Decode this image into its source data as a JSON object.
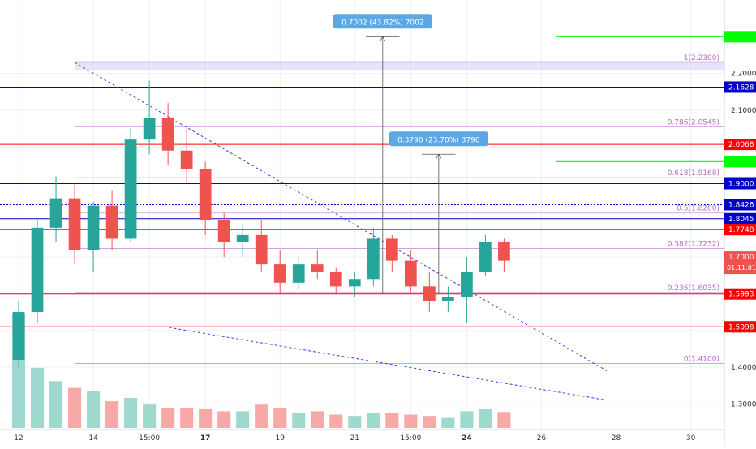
{
  "chart_data": {
    "type": "candlestick",
    "title": "",
    "grid": true,
    "price_axis": {
      "ticks": [
        2.2,
        2.1,
        2.0,
        1.9,
        1.8,
        1.7,
        1.6,
        1.5,
        1.4,
        1.3
      ],
      "tick_labels": [
        "2.2000",
        "2.1000",
        "2.0000",
        "1.9000",
        "1.8000",
        "1.7000",
        "1.6000",
        "1.5000",
        "1.4000",
        "1.3000"
      ],
      "range": [
        1.23,
        2.4
      ]
    },
    "time_axis": {
      "labels": [
        "12",
        "14",
        "15:00",
        "17",
        "19",
        "21",
        "15:00",
        "24",
        "26",
        "28",
        "30"
      ],
      "positions": [
        0,
        4,
        7,
        10,
        14,
        18,
        21,
        24,
        28,
        32,
        36
      ],
      "bold": [
        "17",
        "24"
      ],
      "range_bars": [
        -1,
        37.8
      ]
    },
    "colors": {
      "up": "#26a69a",
      "down": "#ef5350",
      "volume_up": "#9ed8cf",
      "volume_down": "#f7a9a7",
      "fib": "#ba68c8",
      "blue_level": "#0000c8",
      "red_level": "#ff0000",
      "green_level": "#00ff00",
      "trendline": "#3d3ddb",
      "measure": "#5aa9e6"
    },
    "candles": [
      [
        1.42,
        1.58,
        1.4,
        1.55
      ],
      [
        1.55,
        1.8,
        1.52,
        1.78
      ],
      [
        1.78,
        1.92,
        1.74,
        1.86
      ],
      [
        1.86,
        1.9,
        1.68,
        1.72
      ],
      [
        1.72,
        1.85,
        1.66,
        1.84
      ],
      [
        1.84,
        1.88,
        1.72,
        1.75
      ],
      [
        1.75,
        2.05,
        1.74,
        2.02
      ],
      [
        2.02,
        2.18,
        1.98,
        2.08
      ],
      [
        2.08,
        2.12,
        1.95,
        1.99
      ],
      [
        1.99,
        2.05,
        1.9,
        1.94
      ],
      [
        1.94,
        1.96,
        1.76,
        1.8
      ],
      [
        1.8,
        1.82,
        1.7,
        1.74
      ],
      [
        1.74,
        1.79,
        1.7,
        1.76
      ],
      [
        1.76,
        1.8,
        1.66,
        1.68
      ],
      [
        1.68,
        1.72,
        1.6,
        1.63
      ],
      [
        1.63,
        1.7,
        1.61,
        1.68
      ],
      [
        1.68,
        1.72,
        1.64,
        1.66
      ],
      [
        1.66,
        1.67,
        1.6,
        1.62
      ],
      [
        1.62,
        1.66,
        1.59,
        1.64
      ],
      [
        1.64,
        1.78,
        1.62,
        1.75
      ],
      [
        1.75,
        1.76,
        1.66,
        1.69
      ],
      [
        1.69,
        1.72,
        1.6,
        1.62
      ],
      [
        1.62,
        1.66,
        1.55,
        1.58
      ],
      [
        1.58,
        1.62,
        1.55,
        1.59
      ],
      [
        1.59,
        1.7,
        1.52,
        1.66
      ],
      [
        1.66,
        1.76,
        1.65,
        1.74
      ],
      [
        1.74,
        1.75,
        1.66,
        1.69
      ]
    ],
    "volumes": [
      170,
      90,
      70,
      60,
      55,
      40,
      45,
      35,
      30,
      30,
      28,
      25,
      25,
      35,
      30,
      22,
      25,
      20,
      18,
      22,
      22,
      20,
      18,
      15,
      25,
      28,
      24
    ],
    "volume_max": 170,
    "fib_levels": [
      {
        "ratio": "1",
        "price": 2.23,
        "label": "1(2.2300)"
      },
      {
        "ratio": "0.786",
        "price": 2.0545,
        "label": "0.786(2.0545)"
      },
      {
        "ratio": "0.618",
        "price": 1.9168,
        "label": "0.618(1.9168)"
      },
      {
        "ratio": "0.5",
        "price": 1.82,
        "label": "0.5(1.8200)"
      },
      {
        "ratio": "0.382",
        "price": 1.7232,
        "label": "0.382(1.7232)"
      },
      {
        "ratio": "0.236",
        "price": 1.6035,
        "label": "0.236(1.6035)"
      },
      {
        "ratio": "0",
        "price": 1.41,
        "label": "0(1.4100)"
      }
    ],
    "horizontal_levels": [
      {
        "price": 2.1628,
        "label": "2.1628",
        "color": "#0000c8"
      },
      {
        "price": 2.0068,
        "label": "2.0068",
        "color": "#ff0000"
      },
      {
        "price": 1.9,
        "label": "1.9000",
        "color": "#0000c8"
      },
      {
        "price": 1.8426,
        "label": "1.8426",
        "color": "#0000c8",
        "dashed": true
      },
      {
        "price": 1.8045,
        "label": "1.8045",
        "color": "#0000c8"
      },
      {
        "price": 1.7748,
        "label": "1.7748",
        "color": "#ff0000"
      },
      {
        "price": 1.5993,
        "label": "1.5993",
        "color": "#ff0000"
      },
      {
        "price": 1.5098,
        "label": "1.5098",
        "color": "#ff0000"
      }
    ],
    "green_targets": [
      2.3,
      1.96
    ],
    "last_price": {
      "price": 1.7,
      "label": "1.7000",
      "countdown": "01:11:01"
    },
    "measurements": [
      {
        "text": "0.7002 (43.82%) 7002",
        "from_price": 1.6,
        "to_price": 2.3,
        "bar": 19.5
      },
      {
        "text": "0.3790 (23.70%) 3790",
        "from_price": 1.6,
        "to_price": 1.98,
        "bar": 22.5
      }
    ],
    "trendlines": [
      {
        "from": [
          3.0,
          2.23
        ],
        "to": [
          31.5,
          1.39
        ]
      },
      {
        "from": [
          7.8,
          1.51
        ],
        "to": [
          31.5,
          1.31
        ]
      }
    ]
  }
}
